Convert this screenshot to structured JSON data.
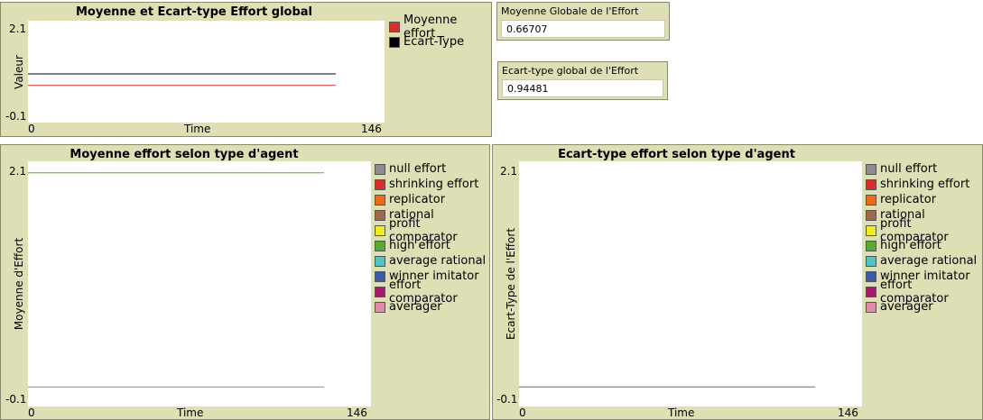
{
  "monitors": [
    {
      "label": "Moyenne Globale de l'Effort",
      "value": "0.66707"
    },
    {
      "label": "Ecart-type global de l'Effort",
      "value": "0.94481"
    }
  ],
  "agent_types": [
    {
      "name": "null effort",
      "color": "#8c8c8c"
    },
    {
      "name": "shrinking effort",
      "color": "#d7302b"
    },
    {
      "name": "replicator",
      "color": "#f06a1c"
    },
    {
      "name": "rational",
      "color": "#9a6a4a"
    },
    {
      "name": "profit comparator",
      "color": "#eded20"
    },
    {
      "name": "high effort",
      "color": "#59a934"
    },
    {
      "name": "average rational",
      "color": "#52c4c4"
    },
    {
      "name": "winner imitator",
      "color": "#3b5aa8"
    },
    {
      "name": "effort comparator",
      "color": "#a71b6e"
    },
    {
      "name": "averager",
      "color": "#e58aa8"
    }
  ],
  "chart_data": [
    {
      "type": "line",
      "title": "Moyenne et Ecart-type Effort global",
      "xlabel": "Time",
      "ylabel": "Valeur",
      "xlim": [
        0,
        146
      ],
      "ylim": [
        -0.1,
        2.1
      ],
      "x_tick_labels": [
        "0",
        "146"
      ],
      "y_tick_labels": [
        "2.1",
        "-0.1"
      ],
      "legend_position": "right",
      "series": [
        {
          "name": "Moyenne effort",
          "color": "#d7302b",
          "x": [
            0,
            126
          ],
          "y": [
            0.667,
            0.667
          ]
        },
        {
          "name": "Ecart-Type",
          "color": "#000000",
          "x": [
            0,
            126
          ],
          "y": [
            0.945,
            0.945
          ]
        }
      ]
    },
    {
      "type": "line",
      "title": "Moyenne effort selon type d'agent",
      "xlabel": "Time",
      "ylabel": "Moyenne d'Effort",
      "xlim": [
        0,
        146
      ],
      "ylim": [
        -0.1,
        2.1
      ],
      "x_tick_labels": [
        "0",
        "146"
      ],
      "y_tick_labels": [
        "2.1",
        "-0.1"
      ],
      "legend_position": "right",
      "series": [
        {
          "name": "null effort",
          "color": "#8c8c8c",
          "x": [
            0,
            126
          ],
          "y": [
            0,
            0
          ]
        },
        {
          "name": "shrinking effort",
          "color": "#d7302b",
          "x": [],
          "y": []
        },
        {
          "name": "replicator",
          "color": "#f06a1c",
          "x": [],
          "y": []
        },
        {
          "name": "rational",
          "color": "#9a6a4a",
          "x": [],
          "y": []
        },
        {
          "name": "profit comparator",
          "color": "#eded20",
          "x": [],
          "y": []
        },
        {
          "name": "high effort",
          "color": "#59a934",
          "x": [
            0,
            126
          ],
          "y": [
            2.05,
            2.05
          ]
        },
        {
          "name": "average rational",
          "color": "#52c4c4",
          "x": [],
          "y": []
        },
        {
          "name": "winner imitator",
          "color": "#3b5aa8",
          "x": [],
          "y": []
        },
        {
          "name": "effort comparator",
          "color": "#a71b6e",
          "x": [],
          "y": []
        },
        {
          "name": "averager",
          "color": "#e58aa8",
          "x": [],
          "y": []
        }
      ]
    },
    {
      "type": "line",
      "title": "Ecart-type effort selon type d'agent",
      "xlabel": "Time",
      "ylabel": "Ecart-Type de l'Effort",
      "xlim": [
        0,
        146
      ],
      "ylim": [
        -0.1,
        2.1
      ],
      "x_tick_labels": [
        "0",
        "146"
      ],
      "y_tick_labels": [
        "2.1",
        "-0.1"
      ],
      "legend_position": "right",
      "series": [
        {
          "name": "null effort",
          "color": "#8c8c8c",
          "x": [
            0,
            126
          ],
          "y": [
            0,
            0
          ]
        },
        {
          "name": "shrinking effort",
          "color": "#d7302b",
          "x": [],
          "y": []
        },
        {
          "name": "replicator",
          "color": "#f06a1c",
          "x": [],
          "y": []
        },
        {
          "name": "rational",
          "color": "#9a6a4a",
          "x": [],
          "y": []
        },
        {
          "name": "profit comparator",
          "color": "#eded20",
          "x": [],
          "y": []
        },
        {
          "name": "high effort",
          "color": "#59a934",
          "x": [
            0,
            126
          ],
          "y": [
            0,
            0
          ]
        },
        {
          "name": "average rational",
          "color": "#52c4c4",
          "x": [],
          "y": []
        },
        {
          "name": "winner imitator",
          "color": "#3b5aa8",
          "x": [],
          "y": []
        },
        {
          "name": "effort comparator",
          "color": "#a71b6e",
          "x": [],
          "y": []
        },
        {
          "name": "averager",
          "color": "#e58aa8",
          "x": [],
          "y": []
        }
      ]
    }
  ]
}
